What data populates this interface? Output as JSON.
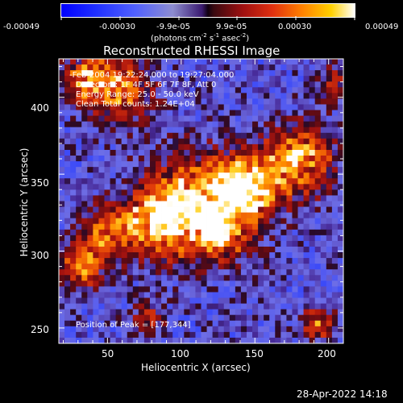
{
  "colorbar": {
    "ticks": [
      "-0.00049",
      "-0.00030",
      "-9.9e-05",
      "9.9e-05",
      "0.00030",
      "0.00049"
    ],
    "units_prefix": "(photons cm",
    "units_exp1": "-2",
    "units_mid1": " s",
    "units_exp2": "-1",
    "units_mid2": " asec",
    "units_exp3": "-2",
    "units_suffix": ")"
  },
  "chart_data": {
    "type": "heatmap",
    "title": "Reconstructed RHESSI Image",
    "xlabel": "Heliocentric X (arcsec)",
    "ylabel": "Heliocentric Y (arcsec)",
    "xlim": [
      17,
      210
    ],
    "ylim": [
      240,
      425
    ],
    "xticks": [
      "50",
      "100",
      "150",
      "200"
    ],
    "yticks": [
      "250",
      "300",
      "350",
      "400"
    ],
    "colorbar_range": [
      -0.00049,
      0.00049
    ],
    "peak": [
      177,
      344
    ]
  },
  "info": {
    "line1": "  -Feb-2004 19:22:24.000 to 19:27:04.000",
    "line2": "Detectors: 1F 4F 5F 6F 7F 8F, Att 0",
    "line3": "Energy Range: 25.0 - 50.0 keV",
    "line4": "Clean     Total counts: 1.24E+04",
    "peak_text": "Position of Peak = [177,344]"
  },
  "timestamp": "28-Apr-2022 14:18"
}
